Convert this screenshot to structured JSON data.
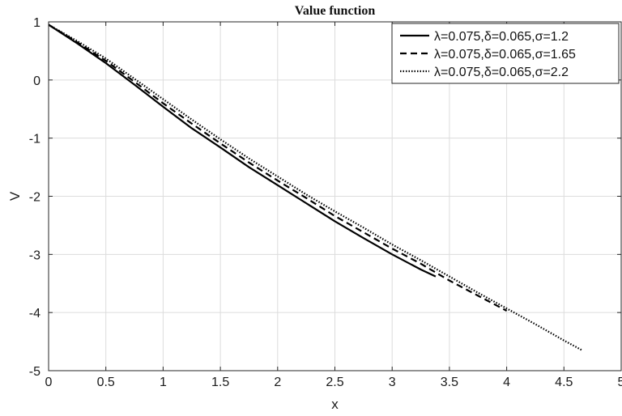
{
  "chart_data": {
    "type": "line",
    "title": "Value function",
    "xlabel": "x",
    "ylabel": "V",
    "xlim": [
      0,
      5
    ],
    "ylim": [
      -5,
      1
    ],
    "xticks": [
      0,
      0.5,
      1,
      1.5,
      2,
      2.5,
      3,
      3.5,
      4,
      4.5,
      5
    ],
    "xtick_labels": [
      "0",
      "0.5",
      "1",
      "1.5",
      "2",
      "2.5",
      "3",
      "3.5",
      "4",
      "4.5",
      "5"
    ],
    "yticks": [
      -5,
      -4,
      -3,
      -2,
      -1,
      0,
      1
    ],
    "ytick_labels": [
      "-5",
      "-4",
      "-3",
      "-2",
      "-1",
      "0",
      "1"
    ],
    "grid": true,
    "legend_position": "top-right",
    "colors": {
      "line": "#000000",
      "grid": "#dcdcdc",
      "axis": "#262626"
    },
    "series": [
      {
        "name": "λ=0.075,δ=0.065,σ=1.2",
        "style": "solid",
        "x": [
          0,
          0.25,
          0.5,
          0.75,
          1.0,
          1.25,
          1.5,
          1.75,
          2.0,
          2.25,
          2.5,
          2.75,
          3.0,
          3.25,
          3.38
        ],
        "y": [
          0.95,
          0.63,
          0.29,
          -0.08,
          -0.46,
          -0.83,
          -1.16,
          -1.5,
          -1.81,
          -2.12,
          -2.43,
          -2.72,
          -3.0,
          -3.26,
          -3.38
        ]
      },
      {
        "name": "λ=0.075,δ=0.065,σ=1.65",
        "style": "dashed",
        "x": [
          0,
          0.25,
          0.5,
          0.75,
          1.0,
          1.25,
          1.5,
          1.75,
          2.0,
          2.25,
          2.5,
          2.75,
          3.0,
          3.25,
          3.5,
          3.75,
          4.0
        ],
        "y": [
          0.95,
          0.65,
          0.33,
          -0.03,
          -0.4,
          -0.75,
          -1.09,
          -1.42,
          -1.73,
          -2.03,
          -2.34,
          -2.62,
          -2.9,
          -3.16,
          -3.45,
          -3.71,
          -3.97
        ]
      },
      {
        "name": "λ=0.075,δ=0.065,σ=2.2",
        "style": "dotted",
        "x": [
          0,
          0.25,
          0.5,
          0.75,
          1.0,
          1.25,
          1.5,
          1.75,
          2.0,
          2.25,
          2.5,
          2.75,
          3.0,
          3.25,
          3.5,
          3.75,
          4.0,
          4.25,
          4.5,
          4.66
        ],
        "y": [
          0.95,
          0.67,
          0.37,
          0.02,
          -0.33,
          -0.68,
          -1.02,
          -1.35,
          -1.66,
          -1.97,
          -2.26,
          -2.54,
          -2.83,
          -3.1,
          -3.38,
          -3.66,
          -3.93,
          -4.2,
          -4.48,
          -4.65
        ]
      }
    ]
  }
}
